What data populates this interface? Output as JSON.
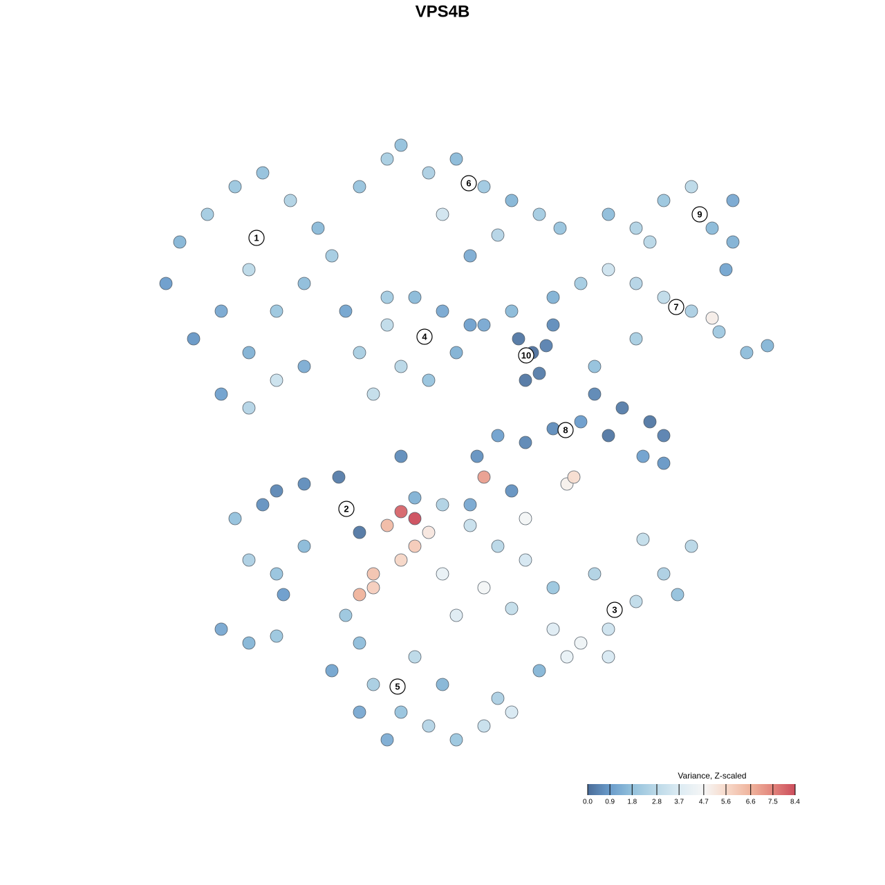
{
  "chart_data": {
    "type": "scatter",
    "title": "VPS4B",
    "xlim": [
      -48,
      48
    ],
    "ylim": [
      -48,
      48
    ],
    "x": [
      -42,
      -40,
      -36,
      -32,
      -28,
      -24,
      -20,
      -30,
      -34,
      -38,
      -30,
      -26,
      -22,
      -18,
      -14,
      -10,
      -30,
      -26,
      -34,
      -22,
      -16,
      -8,
      -4,
      0,
      4,
      8,
      12,
      15,
      -2,
      6,
      2,
      -14,
      -10,
      -6,
      -2,
      -8,
      -4,
      -12,
      0,
      2,
      -10,
      22,
      26,
      30,
      34,
      37,
      40,
      40,
      39,
      28,
      18,
      22,
      26,
      30,
      34,
      38,
      42,
      45,
      37,
      26,
      20,
      14,
      8,
      4,
      9,
      11,
      12,
      10,
      13,
      14,
      20,
      24,
      28,
      30,
      27,
      30,
      22,
      18,
      14,
      10,
      6,
      3,
      -8,
      -6,
      2,
      8,
      -32,
      -28,
      -26,
      -22,
      -17,
      -30,
      -26,
      -22,
      -25,
      -14,
      -34,
      -30,
      -26,
      -8,
      -6,
      -10,
      -6,
      -8,
      -12,
      -4,
      -12,
      -2,
      2,
      6,
      10,
      14,
      4,
      -2,
      4,
      0,
      8,
      16,
      17,
      10,
      -14,
      14,
      18,
      22,
      26,
      30,
      34,
      27,
      20,
      16,
      12,
      32,
      22,
      -16,
      -14,
      -18,
      -12,
      -8,
      -4,
      0,
      4,
      6,
      -2,
      -10,
      8,
      -6,
      -14
    ],
    "y": [
      22,
      28,
      32,
      36,
      38,
      34,
      30,
      24,
      18,
      14,
      12,
      18,
      22,
      26,
      36,
      40,
      4,
      8,
      6,
      10,
      18,
      42,
      38,
      40,
      36,
      34,
      32,
      30,
      32,
      29,
      26,
      12,
      16,
      20,
      18,
      10,
      8,
      6,
      12,
      16,
      20,
      32,
      30,
      34,
      36,
      30,
      34,
      28,
      24,
      28,
      22,
      24,
      22,
      20,
      18,
      15,
      12,
      13,
      17,
      14,
      10,
      20,
      18,
      16,
      14,
      12,
      9,
      8,
      13,
      16,
      6,
      4,
      2,
      0,
      -3,
      -4,
      0,
      2,
      1,
      -1,
      0,
      -3,
      -3,
      -9,
      -10,
      -8,
      -12,
      -10,
      -8,
      -7,
      -6,
      -18,
      -20,
      -16,
      -23,
      -14,
      -28,
      -30,
      -29,
      -11,
      -12,
      -13,
      -16,
      -18,
      -20,
      -14,
      -22,
      -10,
      -13,
      -16,
      -18,
      -22,
      -6,
      -20,
      -22,
      -26,
      -25,
      -7,
      -6,
      -12,
      -23,
      -28,
      -30,
      -28,
      -24,
      -20,
      -16,
      -15,
      -20,
      -32,
      -34,
      -23,
      -32,
      -26,
      -30,
      -34,
      -36,
      -40,
      -42,
      -44,
      -42,
      -38,
      -36,
      -44,
      -40,
      -32,
      -40
    ],
    "values": [
      0.9,
      1.5,
      2.2,
      2.0,
      1.8,
      2.5,
      1.6,
      2.8,
      1.2,
      0.8,
      1.4,
      2.0,
      1.7,
      2.2,
      1.9,
      2.3,
      2.6,
      3.2,
      1.0,
      1.3,
      1.1,
      1.8,
      2.4,
      1.6,
      2.1,
      1.5,
      2.2,
      1.9,
      3.4,
      2.6,
      1.3,
      2.3,
      2.9,
      1.6,
      1.2,
      2.7,
      1.9,
      3.0,
      1.4,
      1.0,
      2.2,
      1.7,
      2.5,
      2.0,
      2.8,
      1.6,
      1.2,
      1.4,
      1.1,
      2.7,
      2.2,
      3.3,
      2.6,
      2.9,
      2.4,
      2.1,
      1.7,
      1.5,
      5.0,
      2.3,
      1.8,
      1.4,
      1.6,
      1.2,
      0.2,
      0.1,
      0.3,
      0.2,
      0.4,
      0.6,
      0.5,
      0.3,
      0.2,
      0.4,
      1.0,
      0.8,
      0.2,
      0.9,
      0.6,
      0.5,
      1.0,
      0.7,
      0.6,
      1.4,
      1.2,
      0.7,
      1.8,
      0.7,
      0.5,
      0.6,
      0.3,
      2.4,
      1.9,
      1.6,
      0.9,
      0.2,
      1.2,
      1.5,
      2.0,
      8.0,
      8.4,
      6.4,
      6.0,
      5.7,
      6.2,
      5.2,
      5.9,
      2.5,
      3.1,
      2.7,
      3.5,
      2.0,
      7.0,
      4.2,
      4.6,
      3.8,
      3.0,
      4.9,
      5.5,
      4.6,
      6.6,
      3.8,
      4.4,
      3.3,
      2.9,
      2.4,
      2.7,
      3.0,
      2.5,
      4.2,
      1.5,
      1.8,
      3.6,
      2.0,
      1.7,
      1.1,
      2.3,
      1.9,
      2.6,
      2.0,
      3.1,
      2.4,
      1.5,
      1.3,
      3.6,
      2.8,
      1.2
    ],
    "clusters": [
      {
        "label": "1",
        "x": -28.9,
        "y": 28.6
      },
      {
        "label": "6",
        "x": 1.8,
        "y": 36.5
      },
      {
        "label": "9",
        "x": 35.2,
        "y": 32.0
      },
      {
        "label": "7",
        "x": 31.8,
        "y": 18.6
      },
      {
        "label": "4",
        "x": -4.6,
        "y": 14.3
      },
      {
        "label": "10",
        "x": 10.1,
        "y": 11.6
      },
      {
        "label": "8",
        "x": 15.8,
        "y": 0.8
      },
      {
        "label": "2",
        "x": -15.9,
        "y": -10.6
      },
      {
        "label": "3",
        "x": 22.9,
        "y": -25.2
      },
      {
        "label": "5",
        "x": -8.5,
        "y": -36.3
      }
    ],
    "colorbar_title": "Variance, Z-scaled",
    "clim": [
      0,
      8.4
    ],
    "cticks": [
      {
        "value": 0,
        "label": "0.0"
      },
      0.9,
      1.8,
      2.8,
      3.7,
      4.7,
      5.6,
      6.6,
      7.5,
      8.4
    ],
    "colorscale": [
      "#4a6c98",
      "#6a9ccb",
      "#93c1dc",
      "#bcd9e8",
      "#dcebf3",
      "#f6f6f6",
      "#f7dacb",
      "#efb39c",
      "#e2847c",
      "#cc4d5c"
    ]
  }
}
